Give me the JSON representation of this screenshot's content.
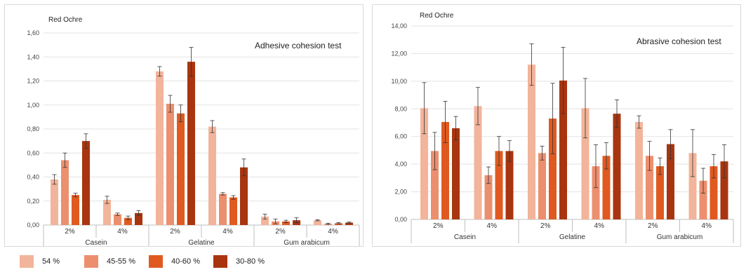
{
  "chart_data": [
    {
      "type": "bar",
      "title": "Adhesive cohesion test",
      "subtitle": "Red Ochre",
      "ylim": [
        0,
        1.6
      ],
      "yticks": [
        "0,00",
        "0,20",
        "0,40",
        "0,60",
        "0,80",
        "1,00",
        "1,20",
        "1,40",
        "1,60"
      ],
      "categories": [
        "2%",
        "4%",
        "2%",
        "4%",
        "2%",
        "4%"
      ],
      "groups": [
        "Casein",
        "Gelatine",
        "Gum arabicum"
      ],
      "series": [
        {
          "name": "54 %",
          "values": [
            0.38,
            0.21,
            1.28,
            0.82,
            0.07,
            0.04
          ],
          "errors": [
            0.04,
            0.03,
            0.04,
            0.05,
            0.02,
            0.005
          ]
        },
        {
          "name": "45-55 %",
          "values": [
            0.54,
            0.09,
            1.01,
            0.26,
            0.03,
            0.01
          ],
          "errors": [
            0.06,
            0.01,
            0.07,
            0.01,
            0.02,
            0.005
          ]
        },
        {
          "name": "40-60 %",
          "values": [
            0.25,
            0.06,
            0.93,
            0.23,
            0.03,
            0.015
          ],
          "errors": [
            0.015,
            0.015,
            0.07,
            0.015,
            0.01,
            0.005
          ]
        },
        {
          "name": "30-80 %",
          "values": [
            0.7,
            0.1,
            1.36,
            0.48,
            0.04,
            0.02
          ],
          "errors": [
            0.06,
            0.02,
            0.12,
            0.07,
            0.02,
            0.005
          ]
        }
      ],
      "grid": true
    },
    {
      "type": "bar",
      "title": "Abrasive cohesion test",
      "subtitle": "Red Ochre",
      "ylim": [
        0,
        14
      ],
      "yticks": [
        "0,00",
        "2,00",
        "4,00",
        "6,00",
        "8,00",
        "10,00",
        "12,00",
        "14,00"
      ],
      "categories": [
        "2%",
        "4%",
        "2%",
        "4%",
        "2%",
        "4%"
      ],
      "groups": [
        "Casein",
        "Gelatine",
        "Gum arabicum"
      ],
      "series": [
        {
          "name": "54 %",
          "values": [
            8.05,
            8.2,
            11.2,
            8.05,
            7.05,
            4.8
          ],
          "errors": [
            1.85,
            1.35,
            1.5,
            2.15,
            0.45,
            1.7
          ]
        },
        {
          "name": "45-55 %",
          "values": [
            4.95,
            3.2,
            4.8,
            3.85,
            4.6,
            2.8
          ],
          "errors": [
            1.35,
            0.6,
            0.5,
            1.55,
            1.05,
            0.9
          ]
        },
        {
          "name": "40-60 %",
          "values": [
            7.05,
            4.95,
            7.3,
            4.6,
            3.85,
            3.85
          ],
          "errors": [
            1.5,
            1.05,
            2.55,
            0.95,
            0.6,
            0.85
          ]
        },
        {
          "name": "30-80 %",
          "values": [
            6.6,
            4.95,
            10.05,
            7.65,
            5.45,
            4.2
          ],
          "errors": [
            0.85,
            0.75,
            2.4,
            1.0,
            1.05,
            1.2
          ]
        }
      ],
      "grid": true
    }
  ],
  "legend": [
    "54 %",
    "45-55 %",
    "40-60 %",
    "30-80 %"
  ],
  "colors": [
    "#f2b49a",
    "#ec8f6e",
    "#e05a20",
    "#a8350f"
  ]
}
